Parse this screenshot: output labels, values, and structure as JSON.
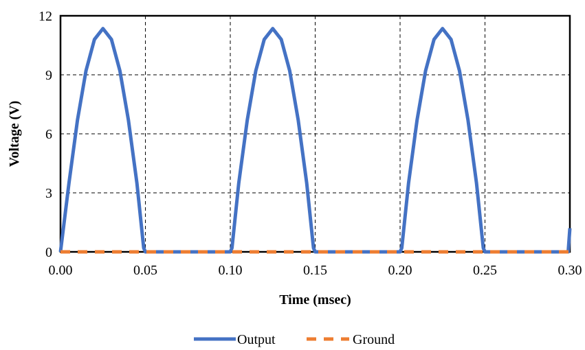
{
  "chart_data": {
    "type": "line",
    "title": "",
    "xlabel": "Time (msec)",
    "ylabel": "Voltage (V)",
    "xlim": [
      0,
      0.3
    ],
    "ylim": [
      0,
      12
    ],
    "x_ticks": [
      "0.00",
      "0.05",
      "0.10",
      "0.15",
      "0.20",
      "0.25",
      "0.30"
    ],
    "y_ticks": [
      "0",
      "3",
      "6",
      "9",
      "12"
    ],
    "grid": true,
    "legend_position": "bottom",
    "series": [
      {
        "name": "Output",
        "color": "#4472C4",
        "style": "solid",
        "x": [
          0.0,
          0.005,
          0.01,
          0.015,
          0.02,
          0.025,
          0.03,
          0.035,
          0.04,
          0.045,
          0.049,
          0.05,
          0.1,
          0.101,
          0.105,
          0.11,
          0.115,
          0.12,
          0.125,
          0.13,
          0.135,
          0.14,
          0.145,
          0.149,
          0.15,
          0.2,
          0.201,
          0.205,
          0.21,
          0.215,
          0.22,
          0.225,
          0.23,
          0.235,
          0.24,
          0.245,
          0.249,
          0.25,
          0.299,
          0.3
        ],
        "y": [
          0.0,
          3.5,
          6.7,
          9.2,
          10.8,
          11.35,
          10.8,
          9.2,
          6.7,
          3.5,
          0.2,
          0.0,
          0.0,
          0.2,
          3.5,
          6.7,
          9.2,
          10.8,
          11.35,
          10.8,
          9.2,
          6.7,
          3.5,
          0.2,
          0.0,
          0.0,
          0.2,
          3.5,
          6.7,
          9.2,
          10.8,
          11.35,
          10.8,
          9.2,
          6.7,
          3.5,
          0.2,
          0.0,
          0.0,
          1.2
        ]
      },
      {
        "name": "Ground",
        "color": "#ED7D31",
        "style": "dashed",
        "x": [
          0.0,
          0.3
        ],
        "y": [
          0.0,
          0.0
        ]
      }
    ]
  }
}
